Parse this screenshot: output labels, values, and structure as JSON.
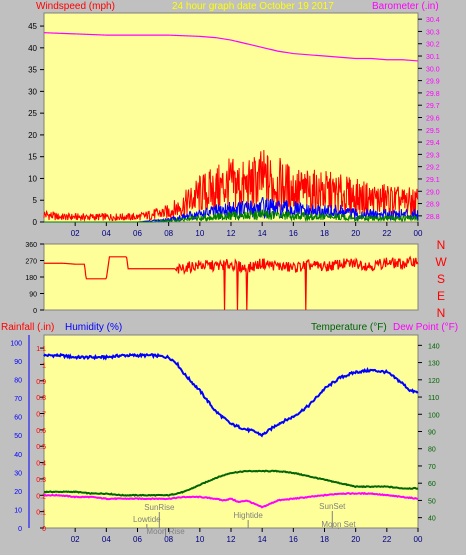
{
  "header": {
    "left_label": "Windspeed (mph)",
    "center_label": "24 hour graph date   October 19 2017",
    "right_label": "Barometer (.in)"
  },
  "colors": {
    "plot_bg": "#ffff99",
    "frame": "#c0c0c0",
    "yellow_text": "#ffff00",
    "gust": "#ff0000",
    "wind": "#0000ff",
    "wind_low": "#008000",
    "barometer": "#ff00ff",
    "direction": "#ff0000",
    "humidity": "#0000ff",
    "temperature": "#006400",
    "dewpoint": "#ff00ff",
    "rain_axis": "#ff0000",
    "hum_axis": "#0000ff",
    "temp_axis": "#006400",
    "axis_text": "#000000",
    "time_text": "#000080"
  },
  "chart_data": [
    {
      "type": "line",
      "x_ticks": [
        "02",
        "04",
        "06",
        "08",
        "10",
        "12",
        "14",
        "16",
        "18",
        "20",
        "22",
        "00"
      ],
      "y_left": {
        "ticks": [
          0,
          5,
          10,
          15,
          20,
          25,
          30,
          35,
          40,
          45
        ],
        "ylim": [
          0,
          48
        ]
      },
      "y_right": {
        "ticks": [
          28.8,
          28.9,
          29.0,
          29.1,
          29.2,
          29.3,
          29.4,
          29.5,
          29.6,
          29.7,
          29.8,
          29.9,
          30.0,
          30.1,
          30.2,
          30.3,
          30.4
        ],
        "ylim": [
          28.75,
          30.45
        ]
      },
      "series": [
        {
          "name": "Barometer (.in)",
          "axis": "right",
          "x": [
            0,
            2,
            4,
            6,
            8,
            10,
            11,
            12,
            13,
            14,
            15,
            16,
            17,
            18,
            19,
            20,
            21,
            22,
            23,
            24
          ],
          "y": [
            30.29,
            30.28,
            30.27,
            30.27,
            30.27,
            30.26,
            30.25,
            30.23,
            30.2,
            30.17,
            30.14,
            30.12,
            30.11,
            30.1,
            30.09,
            30.08,
            30.08,
            30.07,
            30.07,
            30.06
          ]
        },
        {
          "role": "gust",
          "axis": "left",
          "x": [
            0,
            1,
            2,
            3,
            4,
            5,
            6,
            7,
            8,
            9,
            10,
            11,
            12,
            13,
            14,
            15,
            16,
            17,
            18,
            19,
            20,
            21,
            22,
            23,
            24
          ],
          "y": [
            3,
            2,
            2,
            2,
            2,
            2,
            2,
            3,
            4,
            7,
            11,
            13,
            15,
            14,
            17,
            15,
            13,
            12,
            12,
            11,
            10,
            9,
            9,
            8,
            8
          ]
        },
        {
          "role": "wind",
          "axis": "left",
          "x": [
            0,
            1,
            2,
            3,
            4,
            5,
            6,
            7,
            8,
            9,
            10,
            11,
            12,
            13,
            14,
            15,
            16,
            17,
            18,
            19,
            20,
            21,
            22,
            23,
            24
          ],
          "y": [
            0,
            0,
            0,
            0,
            0,
            0,
            0,
            0.5,
            1,
            2,
            3,
            4,
            5,
            5,
            6,
            5,
            5,
            4,
            4,
            4,
            3,
            3,
            3,
            3,
            3
          ]
        },
        {
          "role": "wind-low",
          "axis": "left",
          "x": [
            0,
            1,
            2,
            3,
            4,
            5,
            6,
            7,
            8,
            9,
            10,
            11,
            12,
            13,
            14,
            15,
            16,
            17,
            18,
            19,
            20,
            21,
            22,
            23,
            24
          ],
          "y": [
            0,
            0,
            0,
            0,
            0,
            0,
            0,
            0,
            0.5,
            1,
            1.5,
            2,
            2.5,
            2.5,
            3,
            2.5,
            2.5,
            2,
            2,
            2,
            1.5,
            1.5,
            1.5,
            1.5,
            1.5
          ]
        }
      ]
    },
    {
      "type": "line",
      "x_ticks": [],
      "y_left": {
        "ticks": [
          0,
          90,
          180,
          270,
          360
        ],
        "ylim": [
          0,
          360
        ]
      },
      "right_labels": [
        "N",
        "W",
        "S",
        "E",
        "N"
      ],
      "series": [
        {
          "role": "direction",
          "x": [
            0,
            1.2,
            2,
            2.6,
            2.7,
            4,
            4.2,
            4.5,
            5.3,
            5.4,
            8.4,
            8.5,
            9,
            10,
            11,
            12,
            13,
            14,
            15,
            16,
            17,
            18,
            19,
            20,
            21,
            22,
            23,
            24
          ],
          "y": [
            255,
            255,
            250,
            250,
            170,
            170,
            290,
            290,
            290,
            225,
            225,
            215,
            230,
            245,
            240,
            250,
            225,
            255,
            240,
            230,
            245,
            235,
            250,
            255,
            240,
            260,
            250,
            270
          ]
        }
      ]
    },
    {
      "type": "line",
      "x_ticks": [
        "02",
        "04",
        "06",
        "08",
        "10",
        "12",
        "14",
        "16",
        "18",
        "20",
        "22",
        "00"
      ],
      "y_left_rain": {
        "ticks": [
          0,
          0.1,
          0.2,
          0.3,
          0.4,
          0.5,
          0.6,
          0.7,
          0.8,
          0.9,
          1,
          1.1
        ],
        "labels": [
          "0",
          "0.1",
          "0.2",
          "0.3",
          "0.4",
          "0.5",
          "0.6",
          "0.7",
          "0.8",
          "0.9",
          "1",
          "1.1"
        ],
        "ylim": [
          0,
          1.18
        ]
      },
      "y_left_hum": {
        "ticks": [
          0,
          10,
          20,
          30,
          40,
          50,
          60,
          70,
          80,
          90,
          100
        ],
        "ylim": [
          0,
          104
        ]
      },
      "y_right": {
        "ticks": [
          40,
          50,
          60,
          70,
          80,
          90,
          100,
          110,
          120,
          130,
          140
        ],
        "ylim": [
          34,
          146
        ]
      },
      "series": [
        {
          "name": "Humidity (%)",
          "axis": "hum",
          "x": [
            0,
            1,
            2,
            3,
            4,
            5,
            6,
            7,
            8,
            8.5,
            9,
            10,
            11,
            12,
            13,
            13.5,
            14,
            14.5,
            15,
            16,
            17,
            18,
            19,
            20,
            21,
            22,
            23,
            23.5,
            24
          ],
          "y": [
            93,
            93,
            92,
            92,
            92,
            93,
            93,
            93,
            92,
            89,
            83,
            74,
            63,
            56,
            53,
            52,
            50,
            53,
            56,
            60,
            66,
            75,
            81,
            84,
            85,
            84,
            78,
            74,
            73
          ]
        },
        {
          "name": "Temperature (°F)",
          "axis": "right",
          "x": [
            0,
            1,
            2,
            3,
            4,
            5,
            6,
            7,
            8,
            9,
            10,
            11,
            12,
            13,
            14,
            15,
            16,
            17,
            18,
            19,
            20,
            21,
            22,
            23,
            24
          ],
          "y": [
            55,
            55,
            55,
            54,
            54,
            53,
            53,
            53,
            53,
            55,
            59,
            63,
            66,
            67,
            67,
            67,
            66,
            64,
            62,
            60,
            58,
            58,
            58,
            57,
            57
          ]
        },
        {
          "name": "Dew Point (°F)",
          "axis": "right",
          "x": [
            0,
            1,
            2,
            3,
            4,
            5,
            6,
            7,
            8,
            9,
            10,
            11,
            11.5,
            12,
            12.5,
            13,
            13.5,
            14,
            14.5,
            15,
            16,
            17,
            18,
            19,
            20,
            21,
            22,
            23,
            24
          ],
          "y": [
            53,
            53,
            52,
            52,
            51,
            51,
            51,
            51,
            51,
            52,
            52,
            51,
            50,
            51,
            49,
            50,
            48,
            46,
            48,
            50,
            51,
            52,
            53,
            54,
            54,
            54,
            53,
            52,
            51
          ]
        }
      ],
      "annotations": [
        {
          "text": "SunRise",
          "x": 7.4
        },
        {
          "text": "Lowtide",
          "x": 6.6
        },
        {
          "text": "Moon Rise",
          "x": 7.8
        },
        {
          "text": "Hightide",
          "x": 13.1
        },
        {
          "text": "SunSet",
          "x": 18.5
        },
        {
          "text": "Moon Set",
          "x": 18.9
        }
      ]
    }
  ],
  "lower_headers": {
    "rainfall": "Rainfall (.in)",
    "humidity": "Humidity (%)",
    "temperature": "Temperature (°F)",
    "dewpoint": "Dew Point (°F)"
  }
}
